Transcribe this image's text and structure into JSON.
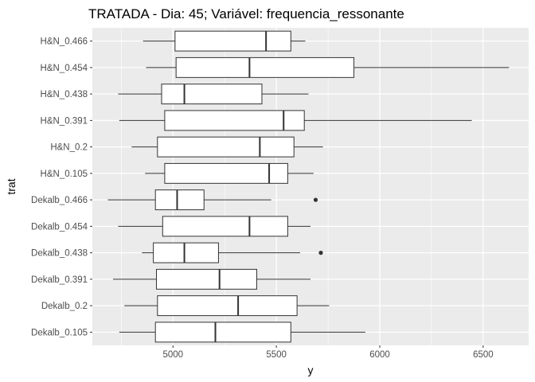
{
  "chart_data": {
    "type": "boxplot",
    "orientation": "horizontal",
    "title": "TRATADA - Dia: 45; Variável: frequencia_ressonante",
    "xlabel": "y",
    "ylabel": "trat",
    "xlim": [
      4610,
      6720
    ],
    "xticks": [
      5000,
      5500,
      6000,
      6500
    ],
    "grid": true,
    "panel_background": "#ebebeb",
    "gridline_color": "#ffffff",
    "box_fill": "#ffffff",
    "box_stroke": "#333333",
    "categories": [
      "H&N_0.466",
      "H&N_0.454",
      "H&N_0.438",
      "H&N_0.391",
      "H&N_0.2",
      "H&N_0.105",
      "Dekalb_0.466",
      "Dekalb_0.454",
      "Dekalb_0.438",
      "Dekalb_0.391",
      "Dekalb_0.2",
      "Dekalb_0.105"
    ],
    "boxes": [
      {
        "label": "H&N_0.466",
        "whisker_low": 4855,
        "q1": 5010,
        "median": 5450,
        "q3": 5570,
        "whisker_high": 5640,
        "outliers": []
      },
      {
        "label": "H&N_0.454",
        "whisker_low": 4870,
        "q1": 5015,
        "median": 5370,
        "q3": 5875,
        "whisker_high": 6625,
        "outliers": []
      },
      {
        "label": "H&N_0.438",
        "whisker_low": 4735,
        "q1": 4945,
        "median": 5055,
        "q3": 5430,
        "whisker_high": 5655,
        "outliers": []
      },
      {
        "label": "H&N_0.391",
        "whisker_low": 4740,
        "q1": 4960,
        "median": 5535,
        "q3": 5635,
        "whisker_high": 6445,
        "outliers": []
      },
      {
        "label": "H&N_0.2",
        "whisker_low": 4800,
        "q1": 4925,
        "median": 5420,
        "q3": 5585,
        "whisker_high": 5725,
        "outliers": []
      },
      {
        "label": "H&N_0.105",
        "whisker_low": 4865,
        "q1": 4960,
        "median": 5465,
        "q3": 5555,
        "whisker_high": 5680,
        "outliers": []
      },
      {
        "label": "Dekalb_0.466",
        "whisker_low": 4685,
        "q1": 4915,
        "median": 5020,
        "q3": 5150,
        "whisker_high": 5475,
        "outliers": [
          5690
        ]
      },
      {
        "label": "Dekalb_0.454",
        "whisker_low": 4735,
        "q1": 4950,
        "median": 5370,
        "q3": 5555,
        "whisker_high": 5665,
        "outliers": []
      },
      {
        "label": "Dekalb_0.438",
        "whisker_low": 4850,
        "q1": 4905,
        "median": 5055,
        "q3": 5220,
        "whisker_high": 5615,
        "outliers": [
          5715
        ]
      },
      {
        "label": "Dekalb_0.391",
        "whisker_low": 4710,
        "q1": 4920,
        "median": 5225,
        "q3": 5405,
        "whisker_high": 5665,
        "outliers": []
      },
      {
        "label": "Dekalb_0.2",
        "whisker_low": 4765,
        "q1": 4925,
        "median": 5315,
        "q3": 5600,
        "whisker_high": 5755,
        "outliers": []
      },
      {
        "label": "Dekalb_0.105",
        "whisker_low": 4740,
        "q1": 4915,
        "median": 5205,
        "q3": 5570,
        "whisker_high": 5930,
        "outliers": []
      }
    ]
  }
}
